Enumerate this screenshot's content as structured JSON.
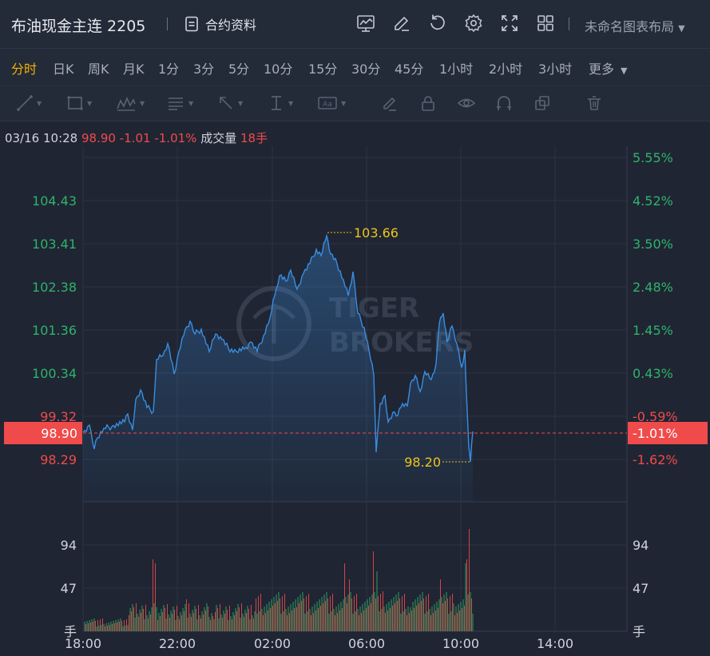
{
  "header": {
    "title": "布油现金主连 2205",
    "contract_info": "合约资料",
    "layout": "未命名图表布局",
    "tools": [
      "chart-template-icon",
      "edit-icon",
      "reset-icon",
      "settings-icon",
      "fullscreen-icon",
      "grid-layout-icon"
    ]
  },
  "periods": [
    {
      "label": "分时",
      "active": true
    },
    {
      "label": "日K"
    },
    {
      "label": "周K"
    },
    {
      "label": "月K"
    },
    {
      "label": "1分"
    },
    {
      "label": "3分"
    },
    {
      "label": "5分"
    },
    {
      "label": "10分"
    },
    {
      "label": "15分"
    },
    {
      "label": "30分"
    },
    {
      "label": "45分"
    },
    {
      "label": "1小时"
    },
    {
      "label": "2小时"
    },
    {
      "label": "3小时"
    },
    {
      "label": "更多"
    }
  ],
  "quote": {
    "datetime": "03/16 10:28",
    "price": "98.90",
    "change": "-1.01",
    "change_pct": "-1.01%",
    "volume_label": "成交量",
    "volume": "18手"
  },
  "chart_data": {
    "type": "line",
    "watermark": [
      "TIGER",
      "BROKERS"
    ],
    "y_left_ticks": [
      "104.43",
      "103.41",
      "102.38",
      "101.36",
      "100.34",
      "99.32",
      "98.29"
    ],
    "y_right_ticks": [
      "5.55%",
      "4.52%",
      "3.50%",
      "2.48%",
      "1.45%",
      "0.43%",
      "-0.59%",
      "-1.62%"
    ],
    "current_price": "98.90",
    "current_pct": "-1.01%",
    "high_label": "103.66",
    "low_label": "98.20",
    "volume_ticks": [
      "94",
      "47",
      "手"
    ],
    "x_ticks": [
      "18:00",
      "22:00",
      "02:00",
      "06:00",
      "10:00",
      "14:00"
    ],
    "colors": {
      "line": "#3a8de0",
      "up": "#2fb36a",
      "down": "#f04b4b",
      "marker": "#f0c419"
    }
  }
}
